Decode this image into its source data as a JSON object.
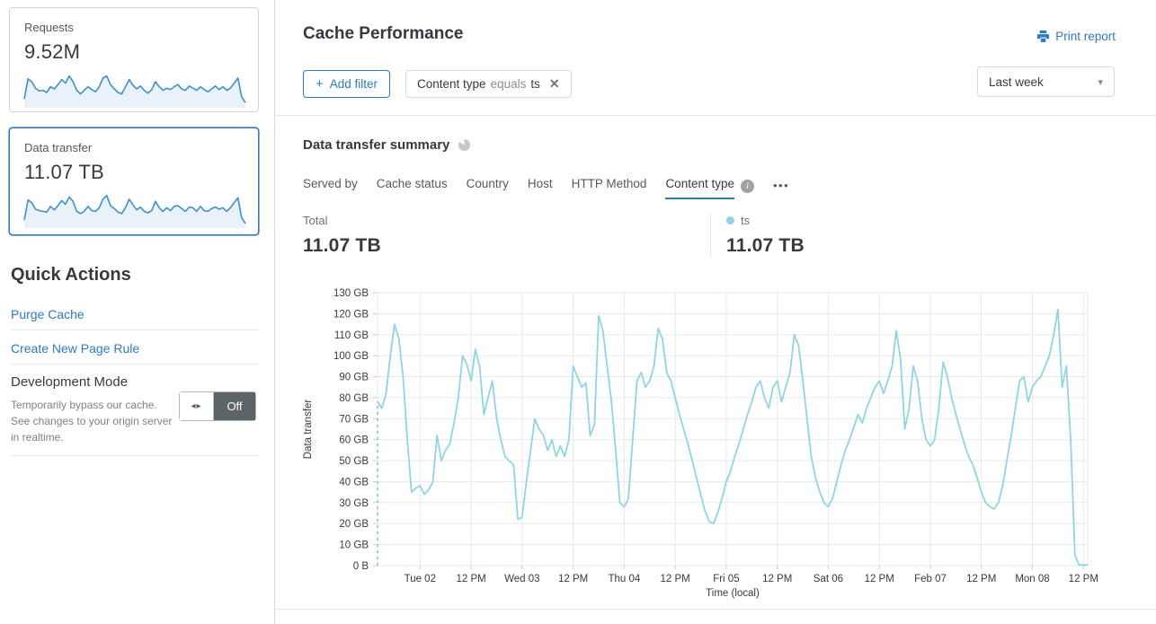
{
  "colors": {
    "accent_blue": "#2f7bbf",
    "chart_line": "#92d4e3",
    "legend_dot": "#8fd2e2",
    "tab_underline": "#2c7f9e",
    "sparkline_stroke": "#4090c9",
    "sparkline_fill": "#e9f2fa",
    "grid": "#e9eaeb",
    "text_dark": "#36393f",
    "text_gray": "#6f7277"
  },
  "icons": {
    "plus": "+",
    "close": "✕",
    "caret": "▾",
    "ellipsis": "•••",
    "dev_toggle_arrows": "◂▸",
    "info": "i"
  },
  "sidebar": {
    "cards": [
      {
        "label": "Requests",
        "value": "9.52M",
        "sparkline": [
          22,
          78,
          70,
          52,
          44,
          46,
          40,
          56,
          50,
          62,
          76,
          66,
          86,
          70,
          46,
          36,
          46,
          56,
          48,
          42,
          56,
          80,
          86,
          62,
          50,
          40,
          36,
          56,
          76,
          60,
          50,
          58,
          46,
          38,
          48,
          70,
          56,
          46,
          52,
          48,
          56,
          62,
          50,
          46,
          58,
          52,
          46,
          56,
          48,
          42,
          50,
          58,
          48,
          56,
          46,
          52,
          66,
          80,
          28,
          12
        ]
      },
      {
        "label": "Data transfer",
        "value": "11.07 TB",
        "selected": true,
        "sparkline": [
          20,
          76,
          68,
          50,
          46,
          44,
          42,
          58,
          48,
          60,
          74,
          64,
          84,
          72,
          44,
          38,
          44,
          58,
          46,
          44,
          54,
          78,
          88,
          60,
          52,
          42,
          38,
          54,
          78,
          62,
          48,
          56,
          44,
          40,
          46,
          72,
          54,
          44,
          54,
          46,
          58,
          60,
          52,
          44,
          56,
          54,
          44,
          58,
          46,
          44,
          52,
          56,
          50,
          54,
          44,
          54,
          68,
          82,
          26,
          10
        ]
      }
    ],
    "quick_actions": {
      "title": "Quick Actions",
      "links": [
        "Purge Cache",
        "Create New Page Rule"
      ],
      "dev_mode": {
        "title": "Development Mode",
        "description": "Temporarily bypass our cache. See changes to your origin server in realtime.",
        "toggle_label": "Off"
      }
    }
  },
  "header": {
    "title": "Cache Performance",
    "print_label": "Print report",
    "add_filter_label": "Add filter",
    "filter_chip": {
      "field": "Content type",
      "operator": "equals",
      "value": "ts"
    },
    "time_range": "Last week"
  },
  "summary": {
    "title": "Data transfer summary",
    "tabs": [
      "Served by",
      "Cache status",
      "Country",
      "Host",
      "HTTP Method",
      "Content type"
    ],
    "active_tab": "Content type",
    "total_label": "Total",
    "total_value": "11.07 TB",
    "series_label": "ts",
    "series_value": "11.07 TB"
  },
  "chart_data": {
    "type": "line",
    "title": "Data transfer summary — Content type",
    "xlabel": "Time (local)",
    "ylabel": "Data transfer",
    "unit": "GB",
    "ylim": [
      0,
      130
    ],
    "grid": true,
    "legend_position": "top-right of totals row",
    "yticks": [
      {
        "v": 0,
        "label": "0 B"
      },
      {
        "v": 10,
        "label": "10 GB"
      },
      {
        "v": 20,
        "label": "20 GB"
      },
      {
        "v": 30,
        "label": "30 GB"
      },
      {
        "v": 40,
        "label": "40 GB"
      },
      {
        "v": 50,
        "label": "50 GB"
      },
      {
        "v": 60,
        "label": "60 GB"
      },
      {
        "v": 70,
        "label": "70 GB"
      },
      {
        "v": 80,
        "label": "80 GB"
      },
      {
        "v": 90,
        "label": "90 GB"
      },
      {
        "v": 100,
        "label": "100 GB"
      },
      {
        "v": 110,
        "label": "110 GB"
      },
      {
        "v": 120,
        "label": "120 GB"
      },
      {
        "v": 130,
        "label": "130 GB"
      }
    ],
    "xticks": [
      {
        "hour": 10,
        "label": "Tue 02"
      },
      {
        "hour": 22,
        "label": "12 PM"
      },
      {
        "hour": 34,
        "label": "Wed 03"
      },
      {
        "hour": 46,
        "label": "12 PM"
      },
      {
        "hour": 58,
        "label": "Thu 04"
      },
      {
        "hour": 70,
        "label": "12 PM"
      },
      {
        "hour": 82,
        "label": "Fri 05"
      },
      {
        "hour": 94,
        "label": "12 PM"
      },
      {
        "hour": 106,
        "label": "Sat 06"
      },
      {
        "hour": 118,
        "label": "12 PM"
      },
      {
        "hour": 130,
        "label": "Feb 07"
      },
      {
        "hour": 142,
        "label": "12 PM"
      },
      {
        "hour": 154,
        "label": "Mon 08"
      },
      {
        "hour": 166,
        "label": "12 PM"
      }
    ],
    "dashed_start": true,
    "series": [
      {
        "name": "ts",
        "color": "#92d4e3",
        "total": "11.07 TB",
        "values": [
          78,
          75,
          82,
          100,
          115,
          108,
          90,
          60,
          35,
          37,
          38,
          34,
          36,
          40,
          62,
          50,
          55,
          58,
          68,
          80,
          100,
          96,
          88,
          103,
          95,
          72,
          80,
          88,
          70,
          60,
          52,
          50,
          48,
          22,
          23,
          40,
          55,
          70,
          65,
          62,
          55,
          60,
          52,
          57,
          52,
          60,
          95,
          90,
          85,
          87,
          62,
          67,
          119,
          112,
          95,
          78,
          55,
          30,
          28,
          32,
          60,
          88,
          92,
          85,
          88,
          95,
          113,
          108,
          92,
          88,
          80,
          72,
          65,
          58,
          50,
          42,
          34,
          26,
          21,
          20,
          25,
          32,
          40,
          45,
          52,
          58,
          65,
          72,
          78,
          85,
          88,
          80,
          75,
          85,
          88,
          78,
          85,
          92,
          110,
          105,
          88,
          70,
          52,
          42,
          35,
          30,
          28,
          32,
          40,
          48,
          55,
          60,
          66,
          72,
          68,
          75,
          80,
          85,
          88,
          82,
          88,
          95,
          112,
          98,
          65,
          75,
          95,
          88,
          70,
          60,
          57,
          60,
          75,
          97,
          90,
          80,
          72,
          65,
          58,
          52,
          48,
          42,
          35,
          30,
          28,
          27,
          30,
          38,
          50,
          62,
          75,
          88,
          90,
          78,
          85,
          88,
          90,
          95,
          100,
          110,
          122,
          85,
          95,
          60,
          5,
          0.3,
          0.3,
          0.3
        ]
      }
    ]
  }
}
